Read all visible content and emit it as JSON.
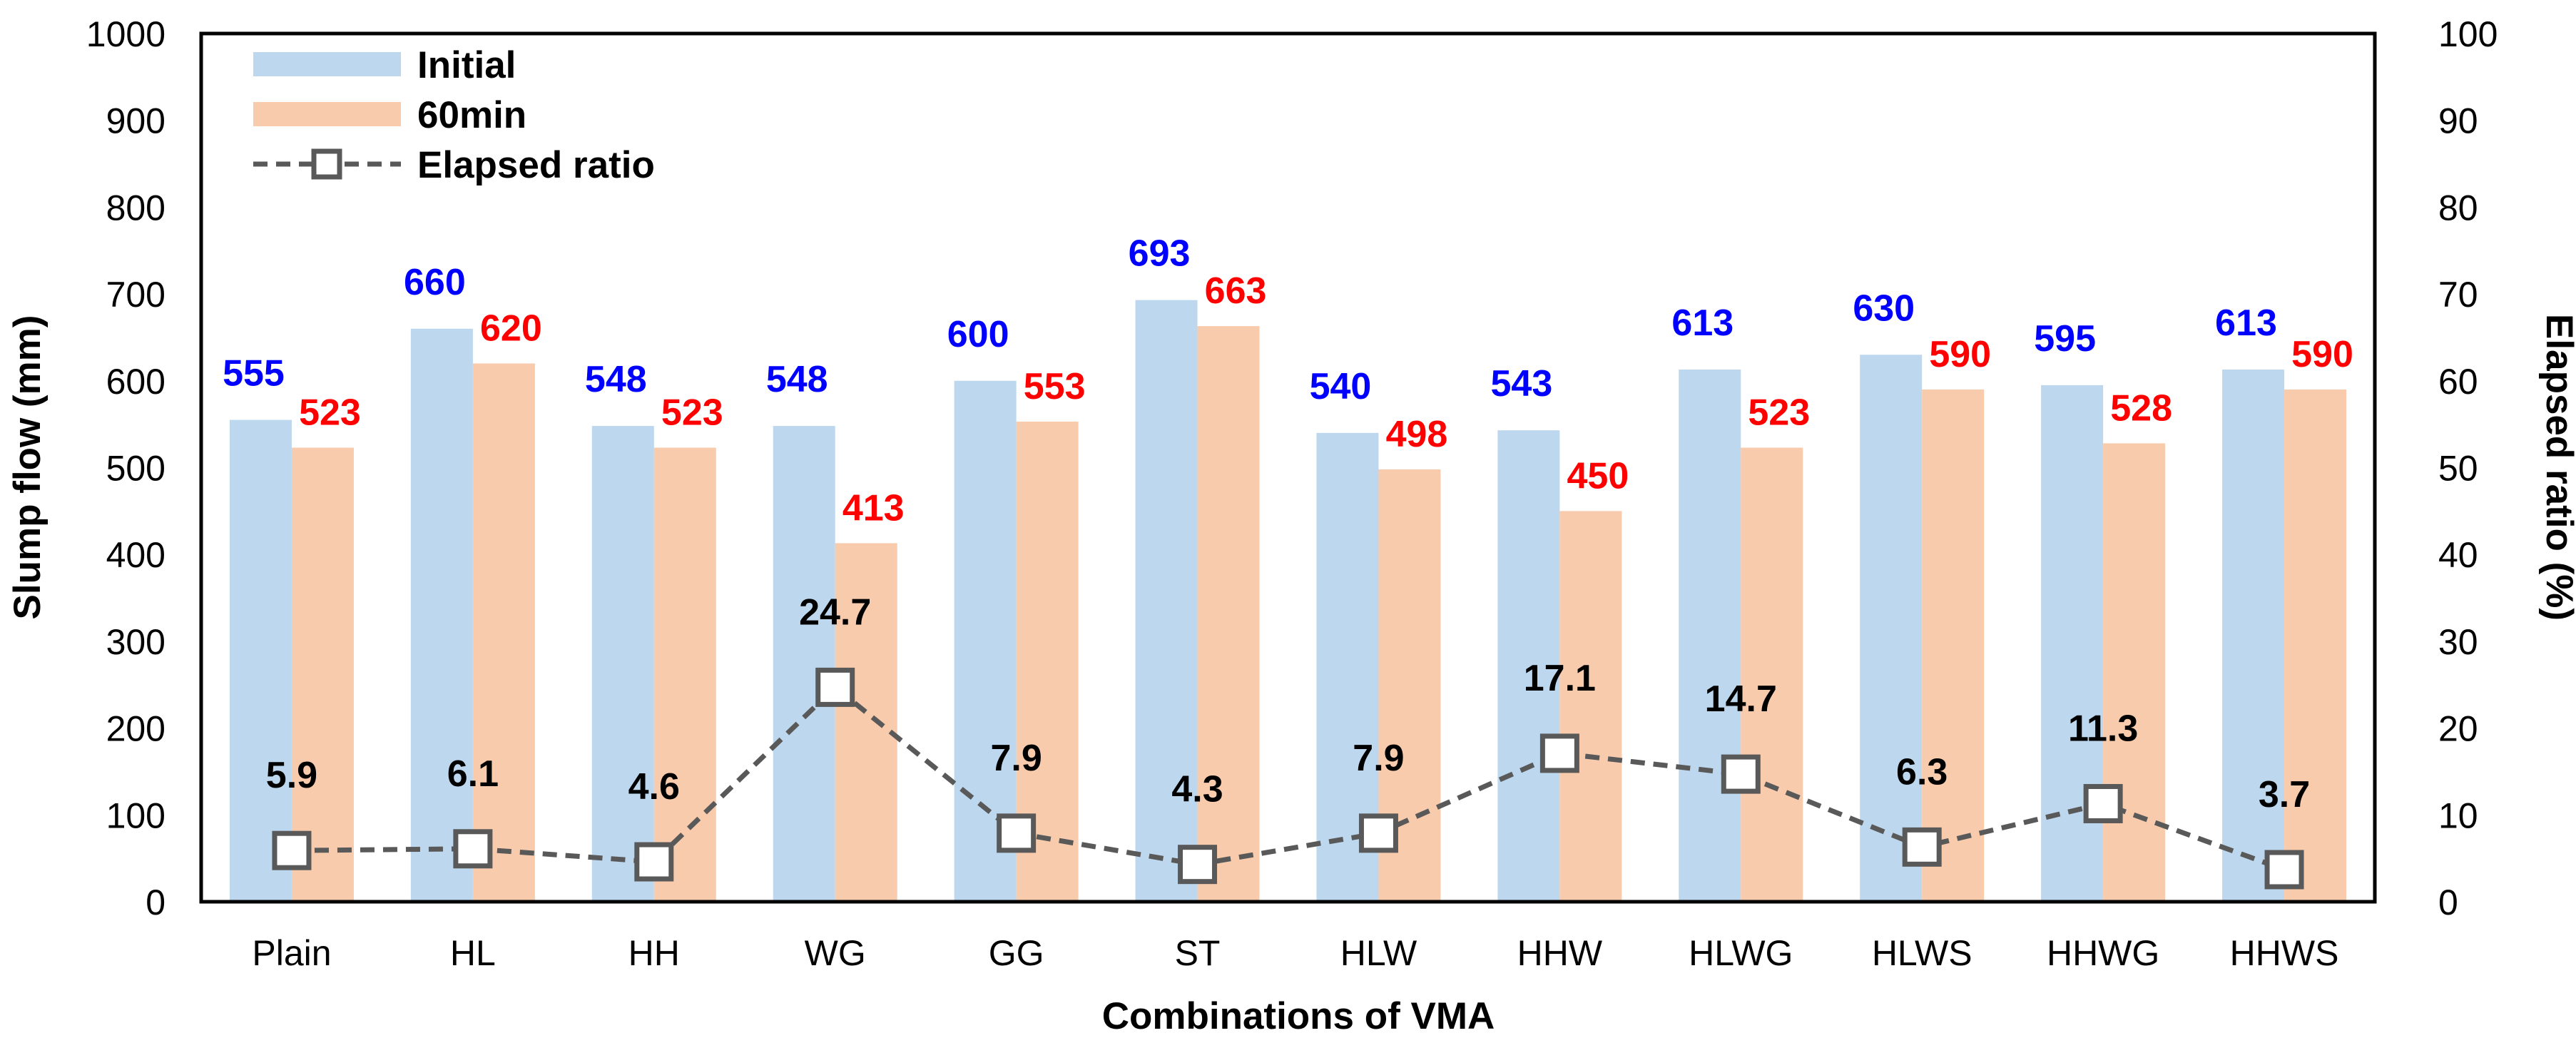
{
  "chart_data": {
    "type": "bar",
    "categories": [
      "Plain",
      "HL",
      "HH",
      "WG",
      "GG",
      "ST",
      "HLW",
      "HHW",
      "HLWG",
      "HLWS",
      "HHWG",
      "HHWS"
    ],
    "series": [
      {
        "name": "Initial",
        "type": "bar",
        "axis": "left",
        "color": "#BDD7EE",
        "label_color": "#0000FF",
        "values": [
          555,
          660,
          548,
          548,
          600,
          693,
          540,
          543,
          613,
          630,
          595,
          613
        ]
      },
      {
        "name": "60min",
        "type": "bar",
        "axis": "left",
        "color": "#F8CBAD",
        "label_color": "#FF0000",
        "values": [
          523,
          620,
          523,
          413,
          553,
          663,
          498,
          450,
          523,
          590,
          528,
          590
        ]
      },
      {
        "name": "Elapsed ratio",
        "type": "line",
        "axis": "right",
        "color": "#595959",
        "label_color": "#000000",
        "values": [
          5.9,
          6.1,
          4.6,
          24.7,
          7.9,
          4.3,
          7.9,
          17.1,
          14.7,
          6.3,
          11.3,
          3.7
        ]
      }
    ],
    "xlabel": "Combinations of VMA",
    "ylabel": "Slump flow (mm)",
    "y2label": "Elapsed ratio (%)",
    "ylim": [
      0,
      1000
    ],
    "y2lim": [
      0,
      100
    ],
    "yticks": [
      0,
      100,
      200,
      300,
      400,
      500,
      600,
      700,
      800,
      900,
      1000
    ],
    "y2ticks": [
      0,
      10,
      20,
      30,
      40,
      50,
      60,
      70,
      80,
      90,
      100
    ],
    "legend_position": "top-left",
    "grid": false
  }
}
